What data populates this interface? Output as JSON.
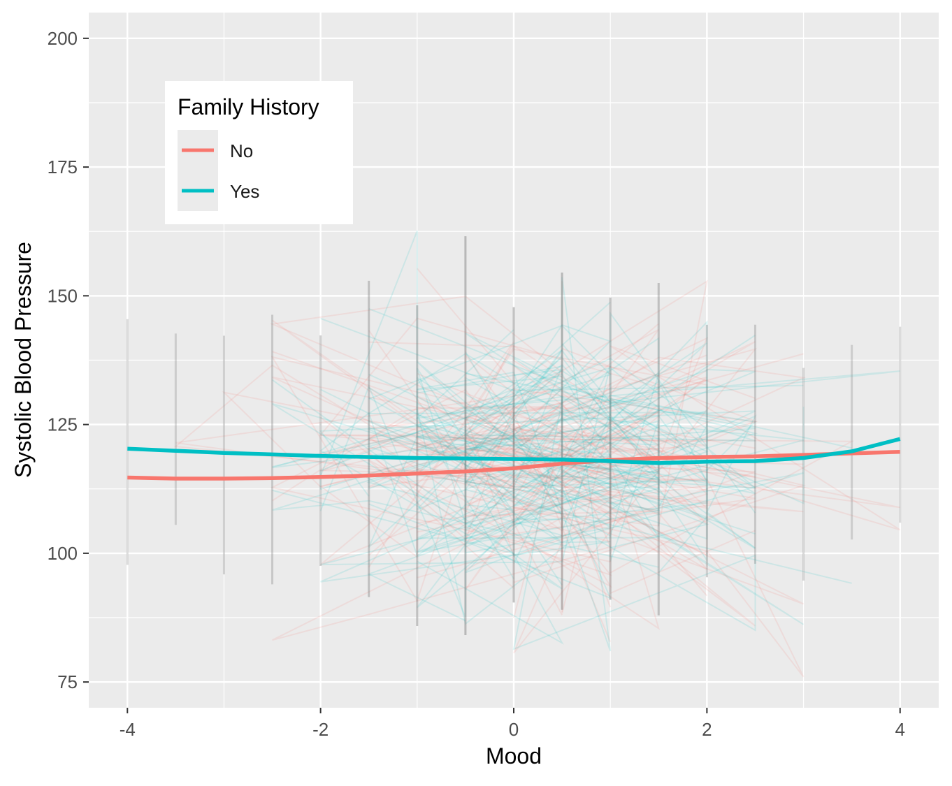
{
  "chart_data": {
    "type": "line",
    "title": "",
    "xlabel": "Mood",
    "ylabel": "Systolic Blood Pressure",
    "xlim": [
      -4.4,
      4.4
    ],
    "ylim": [
      70,
      205
    ],
    "x_ticks": [
      -4,
      -2,
      0,
      2,
      4
    ],
    "x_tick_labels": [
      "-4",
      "-2",
      "0",
      "2",
      "4"
    ],
    "y_ticks": [
      75,
      100,
      125,
      150,
      175,
      200
    ],
    "y_tick_labels": [
      "75",
      "100",
      "125",
      "150",
      "175",
      "200"
    ],
    "grid": true,
    "legend": {
      "title": "Family History",
      "placement": "top-left",
      "entries": [
        "No",
        "Yes"
      ]
    },
    "series": [
      {
        "name": "No",
        "color": "#F8766D",
        "x": [
          -4,
          -3.5,
          -3,
          -2.5,
          -2,
          -1.5,
          -1,
          -0.5,
          0,
          0.5,
          1,
          1.5,
          2,
          2.5,
          3,
          3.5,
          4
        ],
        "values": [
          114.7,
          114.5,
          114.5,
          114.6,
          114.8,
          115.1,
          115.5,
          115.9,
          116.5,
          117.4,
          118.1,
          118.5,
          118.7,
          118.8,
          119.1,
          119.4,
          119.7
        ]
      },
      {
        "name": "Yes",
        "color": "#00BFC4",
        "x": [
          -4,
          -3.5,
          -3,
          -2.5,
          -2,
          -1.5,
          -1,
          -0.5,
          0,
          0.5,
          1,
          1.5,
          2,
          2.5,
          3,
          3.5,
          4
        ],
        "values": [
          120.3,
          119.9,
          119.5,
          119.2,
          118.9,
          118.7,
          118.5,
          118.4,
          118.3,
          118.2,
          117.9,
          117.5,
          117.8,
          117.9,
          118.5,
          119.8,
          122.2
        ]
      }
    ]
  }
}
